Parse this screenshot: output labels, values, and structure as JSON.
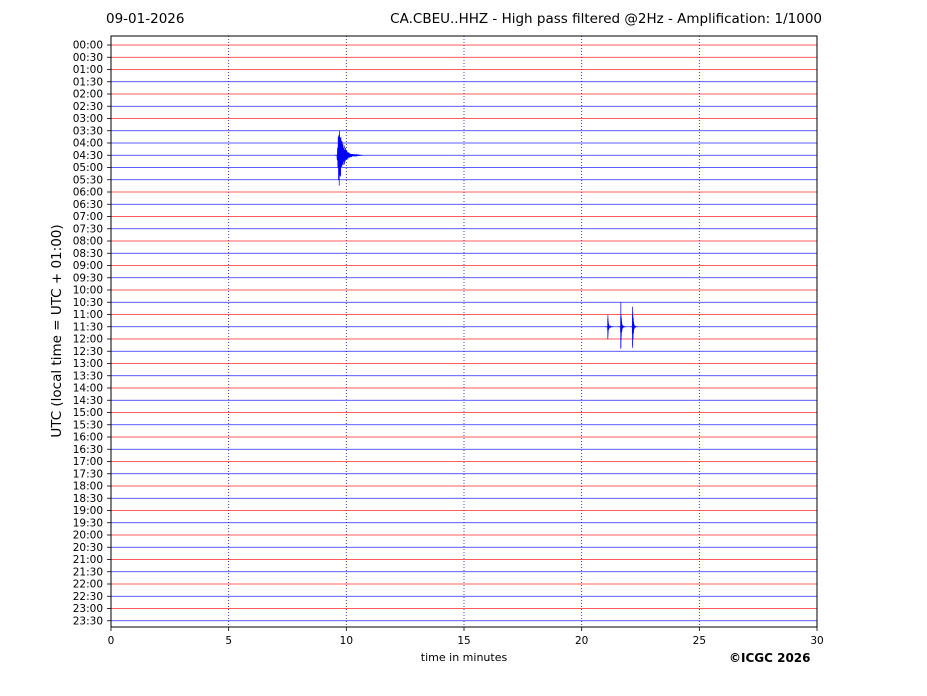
{
  "header": {
    "date": "09-01-2026",
    "title": "CA.CBEU..HHZ - High pass filtered @2Hz - Amplification: 1/1000"
  },
  "footer": {
    "copyright": "©ICGC 2026"
  },
  "chart_data": {
    "type": "line",
    "title": "CA.CBEU..HHZ - High pass filtered @2Hz - Amplification: 1/1000",
    "xlabel": "time in minutes",
    "ylabel": "UTC (local time = UTC + 01:00)",
    "xlim": [
      0,
      30
    ],
    "x_ticks": [
      0,
      5,
      10,
      15,
      20,
      25,
      30
    ],
    "grid": true,
    "trace_colors": [
      "#ff0000",
      "#0000ff"
    ],
    "rows": [
      "00:00",
      "00:30",
      "01:00",
      "01:30",
      "02:00",
      "02:30",
      "03:00",
      "03:30",
      "04:00",
      "04:30",
      "05:00",
      "05:30",
      "06:00",
      "06:30",
      "07:00",
      "07:30",
      "08:00",
      "08:30",
      "09:00",
      "09:30",
      "10:00",
      "10:30",
      "11:00",
      "11:30",
      "12:00",
      "12:30",
      "13:00",
      "13:30",
      "14:00",
      "14:30",
      "15:00",
      "15:30",
      "16:00",
      "16:30",
      "17:00",
      "17:30",
      "18:00",
      "18:30",
      "19:00",
      "19:30",
      "20:00",
      "20:30",
      "21:00",
      "21:30",
      "22:00",
      "22:30",
      "23:00",
      "23:30"
    ],
    "row_colors": [
      "#ff0000",
      "#ff0000",
      "#ff0000",
      "#0000ff",
      "#ff0000",
      "#0000ff",
      "#ff0000",
      "#0000ff",
      "#0000ff",
      "#0000ff",
      "#0000ff",
      "#0000ff",
      "#ff0000",
      "#0000ff",
      "#ff0000",
      "#0000ff",
      "#ff0000",
      "#0000ff",
      "#ff0000",
      "#0000ff",
      "#ff0000",
      "#0000ff",
      "#ff0000",
      "#0000ff",
      "#ff0000",
      "#0000ff",
      "#ff0000",
      "#0000ff",
      "#ff0000",
      "#0000ff",
      "#ff0000",
      "#0000ff",
      "#ff0000",
      "#0000ff",
      "#ff0000",
      "#0000ff",
      "#ff0000",
      "#0000ff",
      "#ff0000",
      "#0000ff",
      "#ff0000",
      "#0000ff",
      "#ff0000",
      "#0000ff",
      "#ff0000",
      "#0000ff",
      "#ff0000",
      "#0000ff"
    ],
    "events": [
      {
        "row": "04:30",
        "minute": 9.6,
        "amplitude": 1.45,
        "duration": 1.0
      },
      {
        "row": "11:30",
        "minute": 21.1,
        "amplitude": 0.55,
        "duration": 0.15
      },
      {
        "row": "11:30",
        "minute": 21.65,
        "amplitude": 1.2,
        "duration": 0.15
      },
      {
        "row": "11:30",
        "minute": 22.15,
        "amplitude": 1.15,
        "duration": 0.15
      }
    ]
  }
}
